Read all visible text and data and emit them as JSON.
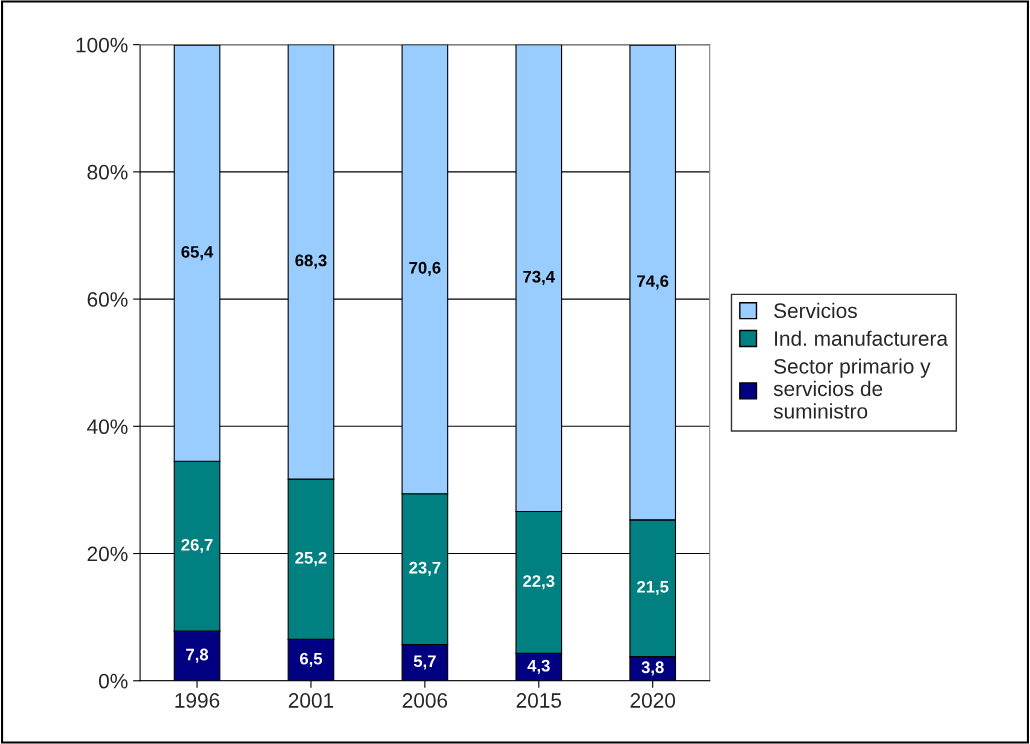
{
  "chart_data": {
    "type": "bar",
    "stacked": true,
    "categories": [
      "1996",
      "2001",
      "2006",
      "2015",
      "2020"
    ],
    "series": [
      {
        "name": "Sector primario y\nservicios de\nsuministro",
        "color": "#000080",
        "values": [
          7.8,
          6.5,
          5.7,
          4.3,
          3.8
        ],
        "value_labels": [
          "7,8",
          "6,5",
          "5,7",
          "4,3",
          "3,8"
        ]
      },
      {
        "name": "Ind. manufacturera",
        "color": "#008080",
        "values": [
          26.7,
          25.2,
          23.7,
          22.3,
          21.5
        ],
        "value_labels": [
          "26,7",
          "25,2",
          "23,7",
          "22,3",
          "21,5"
        ]
      },
      {
        "name": "Servicios",
        "color": "#99ccff",
        "values": [
          65.4,
          68.3,
          70.6,
          73.4,
          74.6
        ],
        "value_labels": [
          "65,4",
          "68,3",
          "70,6",
          "73,4",
          "74,6"
        ]
      }
    ],
    "ylim": [
      0,
      100
    ],
    "yticks": [
      {
        "value": 0,
        "label": "0%"
      },
      {
        "value": 20,
        "label": "20%"
      },
      {
        "value": 40,
        "label": "40%"
      },
      {
        "value": 60,
        "label": "60%"
      },
      {
        "value": 80,
        "label": "80%"
      },
      {
        "value": 100,
        "label": "100%"
      }
    ],
    "grid": "y",
    "legend": "right"
  }
}
